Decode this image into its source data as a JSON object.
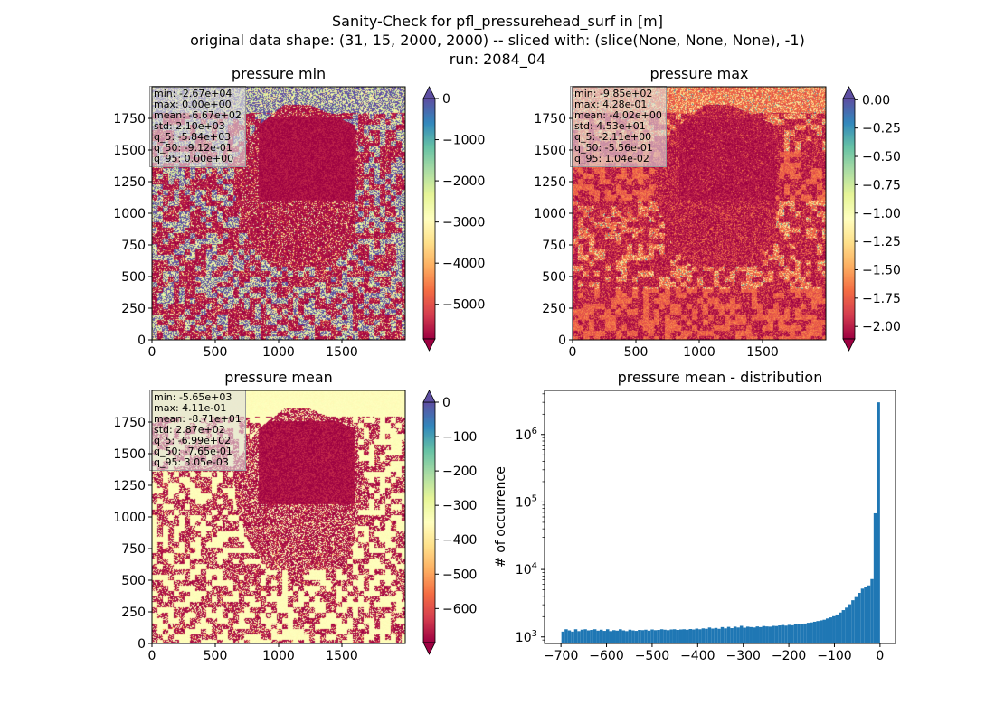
{
  "figure": {
    "title_lines": [
      "Sanity-Check for pfl_pressurehead_surf in [m]",
      "original data shape: (31, 15, 2000, 2000) -- sliced with: (slice(None, None, None), -1)",
      "run: 2084_04"
    ]
  },
  "colors": {
    "spectral_stops": [
      "#9e0142",
      "#d53e4f",
      "#f46d43",
      "#fdae61",
      "#fee08b",
      "#ffffbf",
      "#e6f598",
      "#abdda4",
      "#66c2a5",
      "#3288bd",
      "#5e4fa2"
    ],
    "histogram_bar": "#1f77b4",
    "stats_box_bg": "#dedede"
  },
  "chart_data": [
    {
      "type": "heatmap",
      "name": "pressure-min",
      "title": "pressure min",
      "colormap": "Spectral",
      "x_range": [
        0,
        2000
      ],
      "y_range": [
        0,
        2000
      ],
      "x_ticks": [
        0,
        500,
        1000,
        1500
      ],
      "y_ticks": [
        0,
        250,
        500,
        750,
        1000,
        1250,
        1500,
        1750
      ],
      "colorbar": {
        "min": -5840,
        "max": 0,
        "ticks": [
          0,
          -1000,
          -2000,
          -3000,
          -4000,
          -5000
        ],
        "tick_labels": [
          "0",
          "−1000",
          "−2000",
          "−3000",
          "−4000",
          "−5000"
        ],
        "extend": "both"
      },
      "stats": [
        "min: -2.67e+04",
        "max: 0.00e+00",
        "mean: -6.67e+02",
        "std: 2.10e+03",
        "q_5: -5.84e+03",
        "q_50: -9.12e-01",
        "q_95: 0.00e+00"
      ]
    },
    {
      "type": "heatmap",
      "name": "pressure-max",
      "title": "pressure max",
      "colormap": "Spectral",
      "x_range": [
        0,
        2000
      ],
      "y_range": [
        0,
        2000
      ],
      "x_ticks": [
        0,
        500,
        1000,
        1500
      ],
      "y_ticks": [
        0,
        250,
        500,
        750,
        1000,
        1250,
        1500,
        1750
      ],
      "colorbar": {
        "min": -2.11,
        "max": 0.0104,
        "ticks": [
          0,
          -0.25,
          -0.5,
          -0.75,
          -1.0,
          -1.25,
          -1.5,
          -1.75,
          -2.0
        ],
        "tick_labels": [
          "0.00",
          "−0.25",
          "−0.50",
          "−0.75",
          "−1.00",
          "−1.25",
          "−1.50",
          "−1.75",
          "−2.00"
        ],
        "extend": "both"
      },
      "stats": [
        "min: -9.85e+02",
        "max: 4.28e-01",
        "mean: -4.02e+00",
        "std: 4.53e+01",
        "q_5: -2.11e+00",
        "q_50: -5.56e-01",
        "q_95: 1.04e-02"
      ]
    },
    {
      "type": "heatmap",
      "name": "pressure-mean",
      "title": "pressure mean",
      "colormap": "Spectral",
      "x_range": [
        0,
        2000
      ],
      "y_range": [
        0,
        2000
      ],
      "x_ticks": [
        0,
        500,
        1000,
        1500
      ],
      "y_ticks": [
        0,
        250,
        500,
        750,
        1000,
        1250,
        1500,
        1750
      ],
      "colorbar": {
        "min": -699,
        "max": 0.00305,
        "ticks": [
          0,
          -100,
          -200,
          -300,
          -400,
          -500,
          -600
        ],
        "tick_labels": [
          "0",
          "−100",
          "−200",
          "−300",
          "−400",
          "−500",
          "−600"
        ],
        "extend": "both"
      },
      "stats": [
        "min: -5.65e+03",
        "max: 4.11e-01",
        "mean: -8.71e+01",
        "std: 2.87e+02",
        "q_5: -6.99e+02",
        "q_50: -7.65e-01",
        "q_95: 3.05e-03"
      ]
    },
    {
      "type": "bar",
      "name": "pressure-mean-distribution",
      "title": "pressure mean - distribution",
      "ylabel": "# of occurrence",
      "xlabel": "",
      "yscale": "log",
      "xlim": [
        -736,
        34
      ],
      "ylim": [
        800,
        4500000
      ],
      "x_ticks": [
        -700,
        -600,
        -500,
        -400,
        -300,
        -200,
        -100,
        0
      ],
      "x_tick_labels": [
        "−700",
        "−600",
        "−500",
        "−400",
        "−300",
        "−200",
        "−100",
        "0"
      ],
      "y_ticks": [
        1000,
        10000,
        100000,
        1000000
      ],
      "y_tick_labels": [
        "10^3",
        "10^4",
        "10^5",
        "10^6"
      ],
      "bin_start": -699,
      "bin_end": 0,
      "bin_count": 100,
      "values": [
        1200,
        1300,
        1250,
        1200,
        1300,
        1220,
        1280,
        1300,
        1250,
        1270,
        1300,
        1240,
        1280,
        1230,
        1300,
        1220,
        1260,
        1240,
        1300,
        1250,
        1220,
        1280,
        1250,
        1230,
        1270,
        1260,
        1280,
        1240,
        1290,
        1260,
        1270,
        1300,
        1280,
        1260,
        1290,
        1300,
        1270,
        1290,
        1300,
        1280,
        1310,
        1290,
        1330,
        1300,
        1340,
        1320,
        1380,
        1330,
        1360,
        1320,
        1400,
        1340,
        1410,
        1350,
        1420,
        1380,
        1460,
        1370,
        1420,
        1400,
        1380,
        1430,
        1400,
        1450,
        1430,
        1420,
        1460,
        1450,
        1480,
        1500,
        1470,
        1510,
        1490,
        1530,
        1550,
        1560,
        1580,
        1620,
        1640,
        1680,
        1720,
        1760,
        1800,
        1880,
        1950,
        2030,
        2150,
        2300,
        2500,
        2720,
        3050,
        3500,
        3900,
        4500,
        5200,
        5500,
        5800,
        7200,
        68000,
        3000000
      ]
    }
  ]
}
